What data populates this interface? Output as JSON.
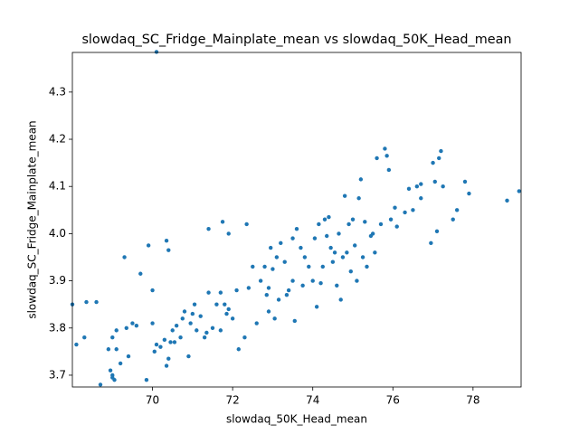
{
  "chart_data": {
    "type": "scatter",
    "title": "slowdaq_SC_Fridge_Mainplate_mean vs slowdaq_50K_Head_mean",
    "xlabel": "slowdaq_50K_Head_mean",
    "ylabel": "slowdaq_SC_Fridge_Mainplate_mean",
    "color": "#1f77b4",
    "x": [
      68.0,
      68.1,
      68.3,
      68.35,
      68.6,
      68.7,
      68.9,
      68.95,
      69.0,
      69.0,
      69.05,
      69.0,
      69.1,
      69.1,
      69.2,
      69.3,
      69.35,
      69.4,
      69.5,
      69.6,
      69.7,
      69.85,
      69.9,
      70.0,
      70.0,
      70.05,
      70.1,
      70.1,
      70.2,
      70.3,
      70.35,
      70.35,
      70.4,
      70.4,
      70.45,
      70.5,
      70.55,
      70.6,
      70.7,
      70.75,
      70.8,
      70.9,
      70.95,
      71.0,
      71.05,
      71.1,
      71.2,
      71.3,
      71.35,
      71.4,
      71.4,
      71.5,
      71.6,
      71.7,
      71.7,
      71.75,
      71.8,
      71.85,
      71.9,
      71.9,
      72.0,
      72.1,
      72.15,
      72.3,
      72.35,
      72.4,
      72.5,
      72.6,
      72.7,
      72.8,
      72.85,
      72.9,
      72.9,
      72.95,
      73.0,
      73.05,
      73.1,
      73.15,
      73.2,
      73.3,
      73.35,
      73.4,
      73.5,
      73.5,
      73.55,
      73.6,
      73.7,
      73.75,
      73.8,
      73.9,
      74.0,
      74.05,
      74.1,
      74.15,
      74.2,
      74.25,
      74.3,
      74.35,
      74.4,
      74.45,
      74.5,
      74.55,
      74.6,
      74.65,
      74.7,
      74.75,
      74.8,
      74.85,
      74.9,
      74.95,
      75.0,
      75.05,
      75.1,
      75.15,
      75.2,
      75.25,
      75.3,
      75.35,
      75.45,
      75.5,
      75.55,
      75.6,
      75.7,
      75.8,
      75.85,
      75.9,
      75.95,
      76.05,
      76.1,
      76.3,
      76.4,
      76.5,
      76.6,
      76.7,
      76.7,
      76.95,
      77.0,
      77.05,
      77.1,
      77.15,
      77.2,
      77.25,
      77.5,
      77.6,
      77.8,
      77.9,
      78.85,
      79.15
    ],
    "values": [
      3.85,
      3.765,
      3.78,
      3.855,
      3.855,
      3.68,
      3.755,
      3.71,
      3.7,
      3.695,
      3.69,
      3.78,
      3.795,
      3.755,
      3.725,
      3.95,
      3.8,
      3.74,
      3.81,
      3.805,
      3.915,
      3.69,
      3.975,
      3.88,
      3.81,
      3.75,
      3.765,
      4.385,
      3.76,
      3.775,
      3.72,
      3.985,
      3.965,
      3.735,
      3.77,
      3.795,
      3.77,
      3.805,
      3.78,
      3.82,
      3.835,
      3.74,
      3.81,
      3.83,
      3.85,
      3.795,
      3.825,
      3.78,
      3.79,
      3.875,
      4.01,
      3.8,
      3.85,
      3.875,
      3.795,
      4.025,
      3.85,
      3.83,
      3.84,
      4.0,
      3.82,
      3.88,
      3.755,
      3.78,
      4.02,
      3.885,
      3.93,
      3.81,
      3.9,
      3.93,
      3.87,
      3.885,
      3.835,
      3.97,
      3.925,
      3.82,
      3.95,
      3.86,
      3.98,
      3.94,
      3.87,
      3.88,
      3.99,
      3.9,
      3.815,
      4.01,
      3.97,
      3.89,
      3.95,
      3.93,
      3.9,
      3.99,
      3.845,
      4.02,
      3.895,
      3.93,
      4.03,
      3.995,
      4.035,
      3.97,
      3.94,
      3.96,
      3.89,
      4.0,
      3.86,
      3.95,
      4.08,
      3.96,
      4.02,
      3.92,
      4.03,
      3.975,
      3.9,
      4.075,
      4.115,
      3.95,
      4.025,
      3.93,
      3.995,
      4.0,
      3.96,
      4.16,
      4.02,
      4.18,
      4.165,
      4.135,
      4.03,
      4.055,
      4.015,
      4.045,
      4.095,
      4.05,
      4.1,
      4.075,
      4.105,
      3.98,
      4.15,
      4.11,
      4.005,
      4.16,
      4.175,
      4.1,
      4.03,
      4.05,
      4.11,
      4.085,
      4.07,
      4.09
    ],
    "xlim": [
      68.0,
      79.2
    ],
    "ylim": [
      3.675,
      4.384
    ],
    "xticks": [
      70,
      72,
      74,
      76,
      78
    ],
    "yticks": [
      3.7,
      3.8,
      3.9,
      {
        "value": 4,
        "label": "4.0"
      },
      4.1,
      4.2,
      4.3
    ]
  }
}
